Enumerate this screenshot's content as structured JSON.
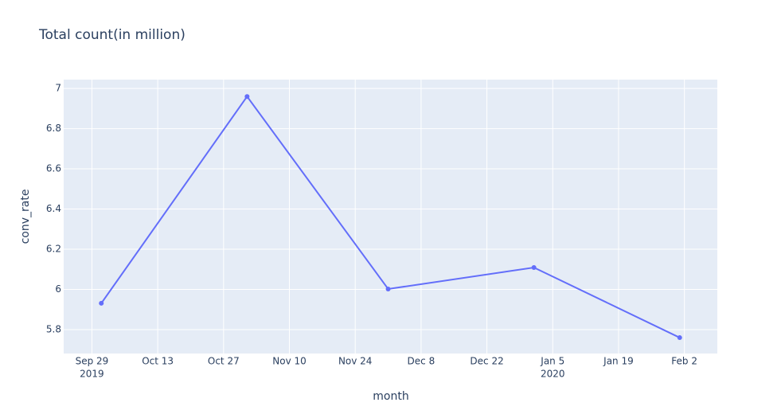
{
  "chart_data": {
    "type": "line",
    "title": "Total count(in million)",
    "x_label": "month",
    "y_label": "conv_rate",
    "x": [
      "2019-10-01",
      "2019-11-01",
      "2019-12-01",
      "2020-01-01",
      "2020-02-01"
    ],
    "values": [
      5.931,
      6.96,
      6.002,
      6.109,
      5.76
    ],
    "color": "#636efa",
    "xlim": [
      "2019-09-23",
      "2020-02-09"
    ],
    "xticks": [
      {
        "value": "2019-09-29",
        "label": "Sep 29",
        "year": "2019"
      },
      {
        "value": "2019-10-13",
        "label": "Oct 13"
      },
      {
        "value": "2019-10-27",
        "label": "Oct 27"
      },
      {
        "value": "2019-11-10",
        "label": "Nov 10"
      },
      {
        "value": "2019-11-24",
        "label": "Nov 24"
      },
      {
        "value": "2019-12-08",
        "label": "Dec 8"
      },
      {
        "value": "2019-12-22",
        "label": "Dec 22"
      },
      {
        "value": "2020-01-05",
        "label": "Jan 5",
        "year": "2020"
      },
      {
        "value": "2020-01-19",
        "label": "Jan 19"
      },
      {
        "value": "2020-02-02",
        "label": "Feb 2"
      }
    ],
    "ylim": [
      5.681,
      7.044
    ],
    "yticks": [
      5.8,
      6,
      6.2,
      6.4,
      6.6,
      6.8,
      7
    ],
    "grid": true
  }
}
